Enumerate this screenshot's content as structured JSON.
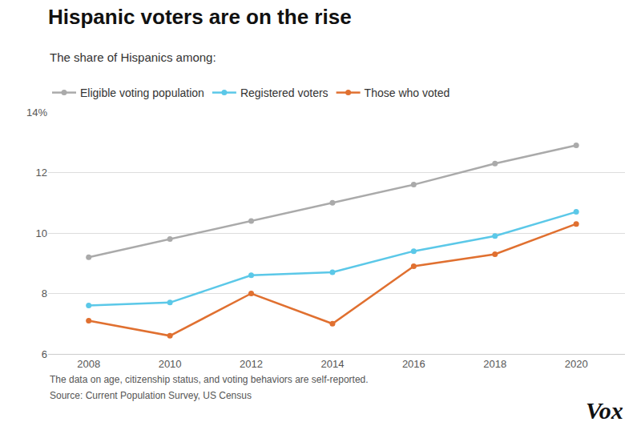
{
  "chart_data": {
    "type": "line",
    "title": "Hispanic voters are on the rise",
    "subtitle": "The share of Hispanics among:",
    "x": [
      2008,
      2010,
      2012,
      2014,
      2016,
      2018,
      2020
    ],
    "series": [
      {
        "name": "Eligible voting population",
        "color": "#aaaaaa",
        "values": [
          9.2,
          9.8,
          10.4,
          11.0,
          11.6,
          12.3,
          12.9
        ]
      },
      {
        "name": "Registered voters",
        "color": "#5bc8e8",
        "values": [
          7.6,
          7.7,
          8.6,
          8.7,
          9.4,
          9.9,
          10.7
        ]
      },
      {
        "name": "Those who voted",
        "color": "#e07030",
        "values": [
          7.1,
          6.6,
          8.0,
          7.0,
          8.9,
          9.3,
          10.3
        ]
      }
    ],
    "xlim": [
      2007.0,
      2021.2
    ],
    "xticks": [
      2008,
      2010,
      2012,
      2014,
      2016,
      2018,
      2020
    ],
    "ylim": [
      6,
      14
    ],
    "yticks": [
      6,
      8,
      10,
      12,
      {
        "value": 14,
        "label": "14%"
      }
    ],
    "grid": "y",
    "legend": "upper left",
    "marker": "circle",
    "annotations": [
      "The data on age, citizenship status, and voting behaviors are self-reported.",
      "Source: Current Population Survey, US Census",
      "Vox"
    ]
  }
}
